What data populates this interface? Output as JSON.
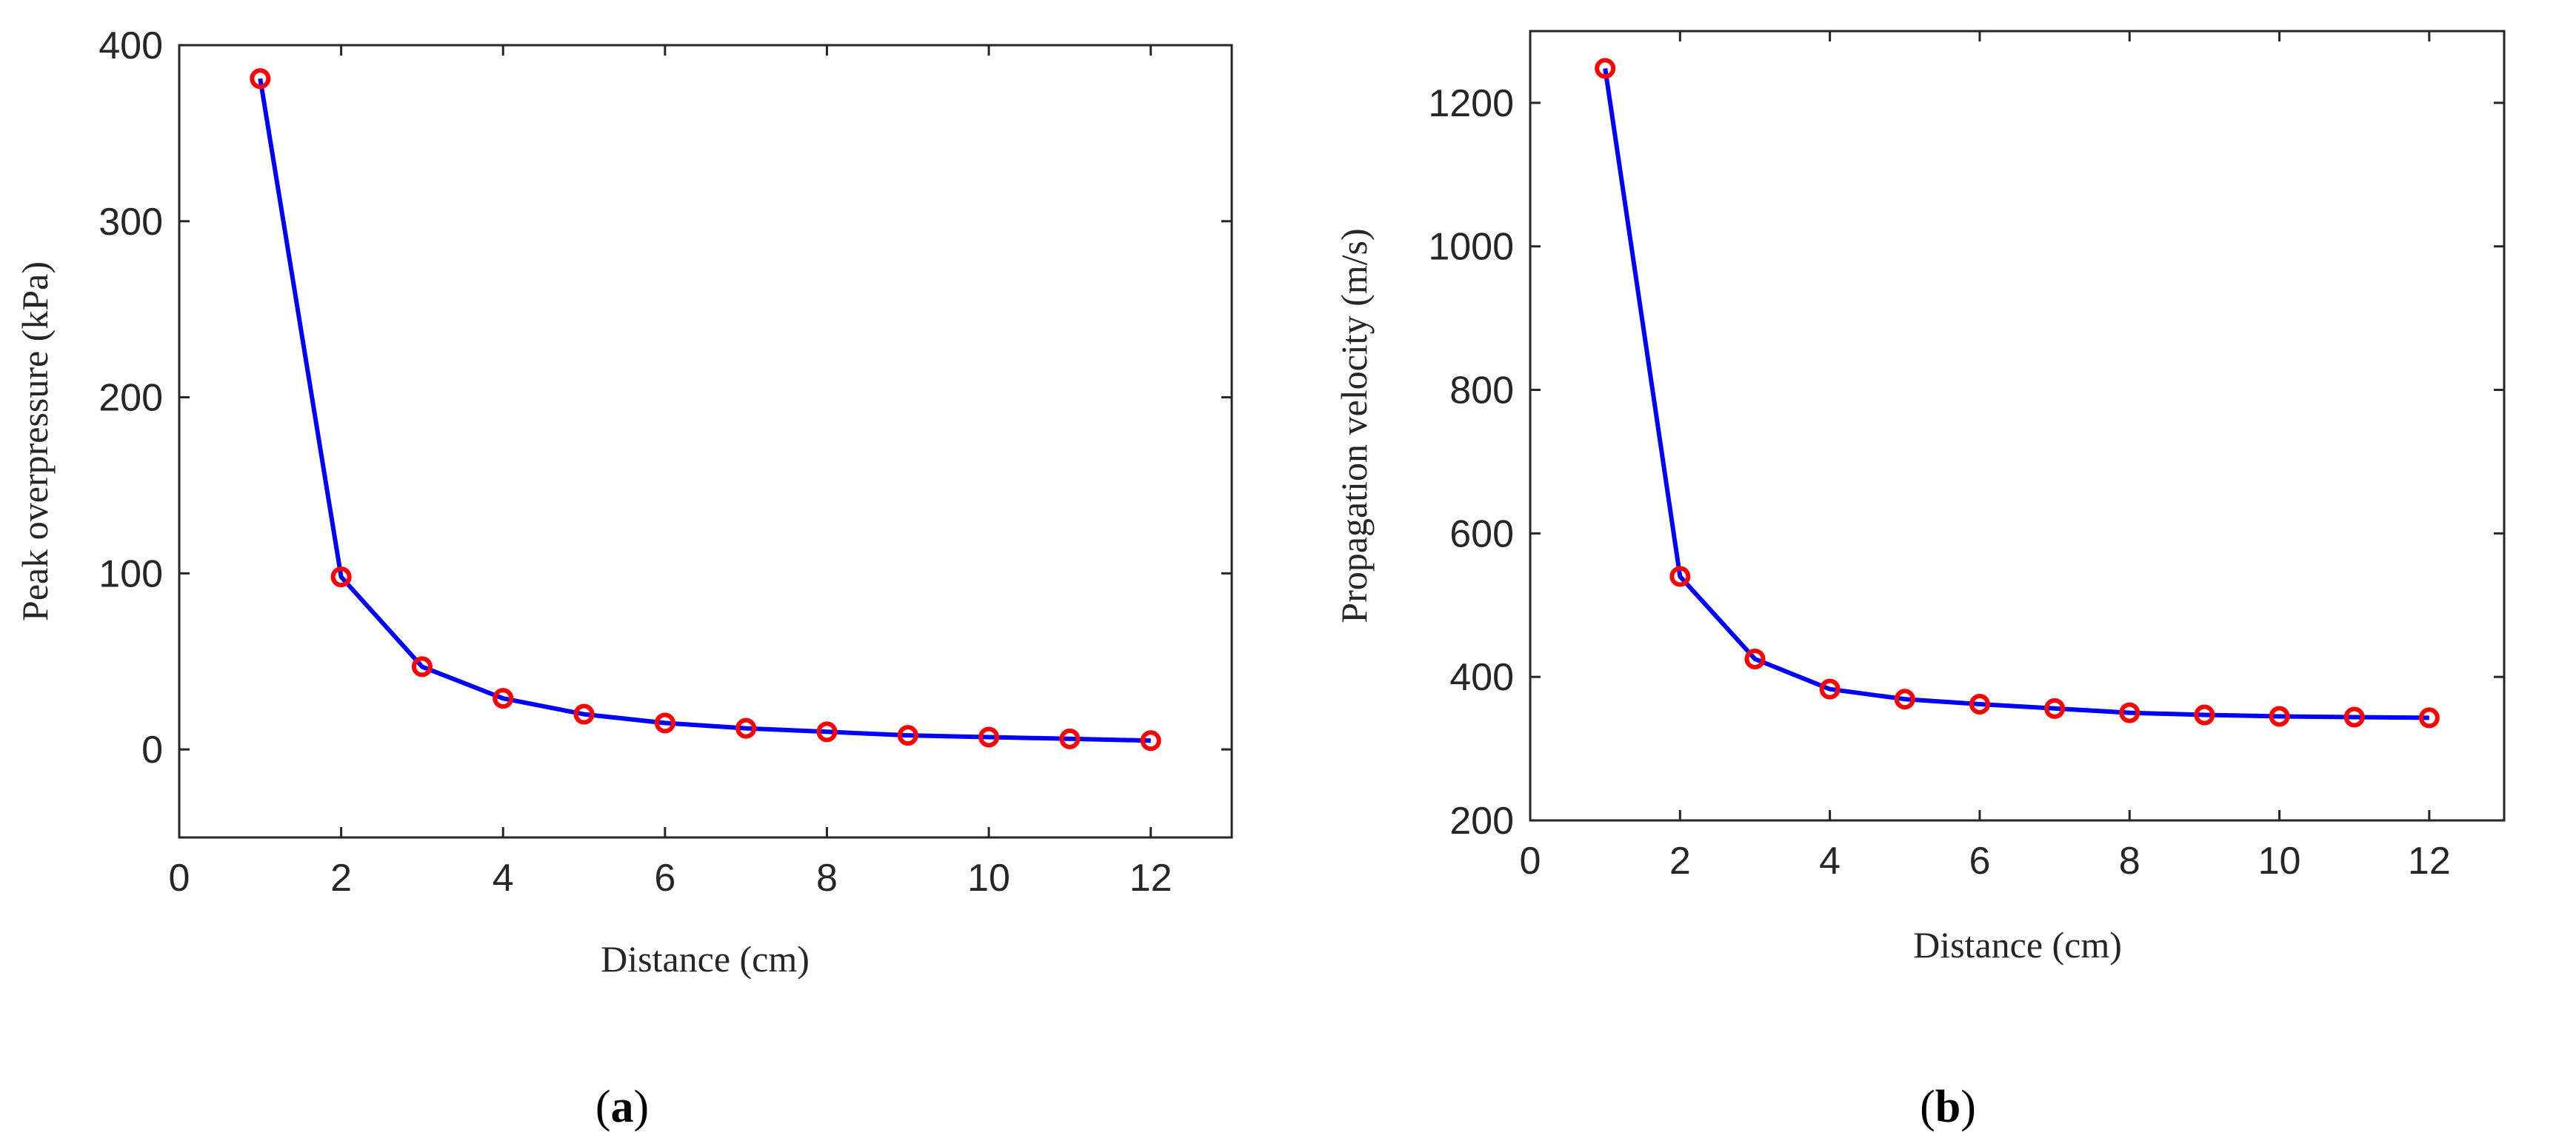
{
  "figure": {
    "background": "#ffffff"
  },
  "chart_data": [
    {
      "type": "line",
      "panel": "a",
      "panel_label": "a",
      "title": "",
      "xlabel": "Distance (cm)",
      "ylabel": "Peak overpressure (kPa)",
      "xlim": [
        0,
        13
      ],
      "ylim": [
        -50,
        400
      ],
      "xticks": [
        0,
        2,
        4,
        6,
        8,
        10,
        12
      ],
      "yticks": [
        0,
        100,
        200,
        300,
        400
      ],
      "grid": false,
      "legend": "none",
      "series": [
        {
          "name": "Peak overpressure",
          "line_color": "#0000ff",
          "marker": "circle",
          "marker_color": "#ff0000",
          "x": [
            1,
            2,
            3,
            4,
            5,
            6,
            7,
            8,
            9,
            10,
            11,
            12
          ],
          "y": [
            381,
            98,
            47,
            29,
            20,
            15,
            12,
            10,
            8,
            7,
            6,
            5
          ]
        }
      ]
    },
    {
      "type": "line",
      "panel": "b",
      "panel_label": "b",
      "title": "",
      "xlabel": "Distance (cm)",
      "ylabel": "Propagation velocity (m/s)",
      "xlim": [
        0,
        13
      ],
      "ylim": [
        200,
        1300
      ],
      "xticks": [
        0,
        2,
        4,
        6,
        8,
        10,
        12
      ],
      "yticks": [
        200,
        400,
        600,
        800,
        1000,
        1200
      ],
      "grid": false,
      "legend": "none",
      "series": [
        {
          "name": "Propagation velocity",
          "line_color": "#0000ff",
          "marker": "circle",
          "marker_color": "#ff0000",
          "x": [
            1,
            2,
            3,
            4,
            5,
            6,
            7,
            8,
            9,
            10,
            11,
            12
          ],
          "y": [
            1248,
            540,
            425,
            383,
            369,
            362,
            356,
            350,
            347,
            345,
            344,
            343
          ]
        }
      ]
    }
  ]
}
